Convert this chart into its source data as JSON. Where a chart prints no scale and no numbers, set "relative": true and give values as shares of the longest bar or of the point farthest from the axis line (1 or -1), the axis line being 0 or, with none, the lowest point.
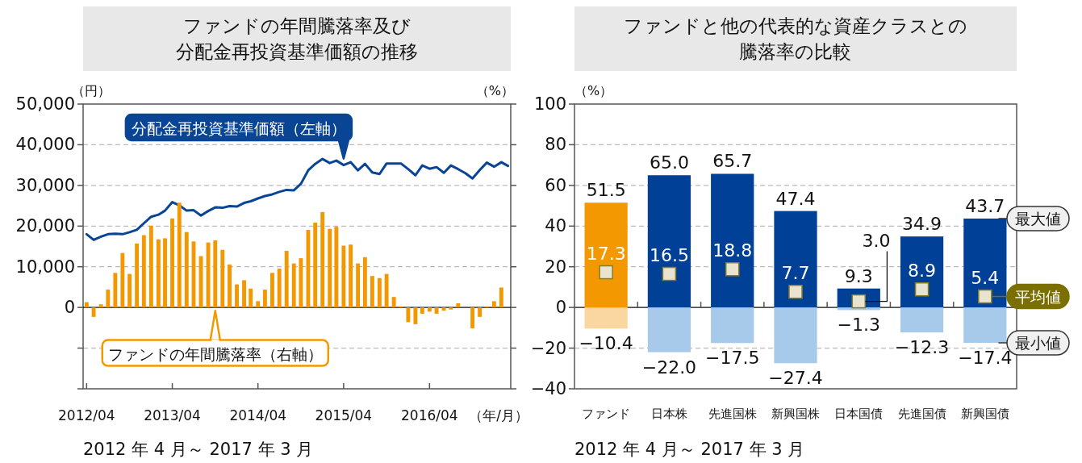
{
  "chart_data": [
    {
      "type": "line",
      "title": "ファンドの年間騰落率及び分配金再投資基準価額の推移",
      "xlabel": "（年/月）",
      "ylabel": "（円）",
      "annotations": [
        "2012 年 4 月～ 2017 年 3 月"
      ],
      "legend": "top",
      "grid": "y",
      "x": [
        "2012-04",
        "2012-05",
        "2012-06",
        "2012-07",
        "2012-08",
        "2012-09",
        "2012-10",
        "2012-11",
        "2012-12",
        "2013-01",
        "2013-02",
        "2013-03",
        "2013-04",
        "2013-05",
        "2013-06",
        "2013-07",
        "2013-08",
        "2013-09",
        "2013-10",
        "2013-11",
        "2013-12",
        "2014-01",
        "2014-02",
        "2014-03",
        "2014-04",
        "2014-05",
        "2014-06",
        "2014-07",
        "2014-08",
        "2014-09",
        "2014-10",
        "2014-11",
        "2014-12",
        "2015-01",
        "2015-02",
        "2015-03",
        "2015-04",
        "2015-05",
        "2015-06",
        "2015-07",
        "2015-08",
        "2015-09",
        "2015-10",
        "2015-11",
        "2015-12",
        "2016-01",
        "2016-02",
        "2016-03",
        "2016-04",
        "2016-05",
        "2016-06",
        "2016-07",
        "2016-08",
        "2016-09",
        "2016-10",
        "2016-11",
        "2016-12",
        "2017-01",
        "2017-02",
        "2017-03"
      ],
      "xlim": [
        "2012-03-17",
        "2017-03-13"
      ],
      "xticks": [
        {
          "value": "2012-04",
          "label": "2012/04"
        },
        {
          "value": "2013-04",
          "label": "2013/04"
        },
        {
          "value": "2014-04",
          "label": "2014/04"
        },
        {
          "value": "2015-04",
          "label": "2015/04"
        },
        {
          "value": "2016-04",
          "label": "2016/04"
        }
      ],
      "ylim": [
        -20000,
        50000
      ],
      "yticks": [
        {
          "value": -20000,
          "label": null
        },
        {
          "value": -10000,
          "label": null
        },
        0,
        {
          "value": 10000,
          "label": "10,000"
        },
        {
          "value": 20000,
          "label": "20,000"
        },
        {
          "value": 30000,
          "label": "30,000"
        },
        {
          "value": 40000,
          "label": "40,000"
        },
        {
          "value": 50000,
          "label": "50,000"
        }
      ],
      "series": [
        {
          "name": "分配金再投資基準価額（左軸）",
          "color": "#0a4595",
          "values": [
            18000,
            16600,
            17400,
            18000,
            18100,
            18000,
            18500,
            19100,
            20700,
            22300,
            22800,
            23800,
            25900,
            25100,
            23800,
            23900,
            22600,
            23700,
            24600,
            24500,
            24900,
            24800,
            25700,
            26100,
            26800,
            27400,
            27800,
            28400,
            28900,
            28800,
            30400,
            33700,
            35300,
            36500,
            35500,
            36100,
            35000,
            35700,
            33700,
            35300,
            33200,
            32800,
            35400,
            35400,
            35400,
            34000,
            32500,
            34900,
            34100,
            34500,
            33100,
            34900,
            34000,
            33000,
            31700,
            33800,
            35600,
            34600,
            35700,
            34800
          ]
        }
      ]
    },
    {
      "type": "bar",
      "ylabel": "（%）",
      "relative": true,
      "legend": "bottom",
      "x": [
        "2012-04",
        "2012-05",
        "2012-06",
        "2012-07",
        "2012-08",
        "2012-09",
        "2012-10",
        "2012-11",
        "2012-12",
        "2013-01",
        "2013-02",
        "2013-03",
        "2013-04",
        "2013-05",
        "2013-06",
        "2013-07",
        "2013-08",
        "2013-09",
        "2013-10",
        "2013-11",
        "2013-12",
        "2014-01",
        "2014-02",
        "2014-03",
        "2014-04",
        "2014-05",
        "2014-06",
        "2014-07",
        "2014-08",
        "2014-09",
        "2014-10",
        "2014-11",
        "2014-12",
        "2015-01",
        "2015-02",
        "2015-03",
        "2015-04",
        "2015-05",
        "2015-06",
        "2015-07",
        "2015-08",
        "2015-09",
        "2015-10",
        "2015-11",
        "2015-12",
        "2016-01",
        "2016-02",
        "2016-03",
        "2016-04",
        "2016-05",
        "2016-06",
        "2016-07",
        "2016-08",
        "2016-09",
        "2016-10",
        "2016-11",
        "2016-12",
        "2017-01",
        "2017-02"
      ],
      "xlim": [
        "2012-03-17",
        "2017-03-13"
      ],
      "series": [
        {
          "name": "ファンドの年間騰落率（右軸）",
          "color": "#f39800",
          "values": [
            0.05,
            -0.09,
            0.03,
            0.17,
            0.33,
            0.52,
            0.32,
            0.61,
            0.69,
            0.78,
            0.65,
            0.66,
            0.85,
            1,
            0.72,
            0.63,
            0.49,
            0.62,
            0.64,
            0.55,
            0.41,
            0.22,
            0.26,
            0.18,
            0.06,
            0.17,
            0.33,
            0.37,
            0.54,
            0.42,
            0.47,
            0.74,
            0.81,
            0.91,
            0.75,
            0.77,
            0.59,
            0.6,
            0.42,
            0.48,
            0.3,
            0.28,
            0.32,
            0.1,
            0.01,
            -0.14,
            -0.16,
            -0.06,
            -0.04,
            -0.06,
            -0.03,
            -0.02,
            0.04,
            0,
            -0.2,
            -0.09,
            0.01,
            0.06,
            0.19
          ]
        }
      ]
    },
    {
      "type": "bar",
      "title": "ファンドと他の代表的な資産クラスとの騰落率の比較",
      "ylabel": "（%）",
      "annotations": [
        "2012 年 4 月～ 2017 年 3 月"
      ],
      "legend": "right",
      "grid": "y",
      "stacked": true,
      "categories": [
        "ファンド",
        "日本株",
        "先進国株",
        "新興国株",
        "日本国債",
        "先進国債",
        "新興国債"
      ],
      "ylim": [
        -40,
        100
      ],
      "yticks": [
        {
          "value": -40,
          "label": "−40"
        },
        {
          "value": -20,
          "label": "−20"
        },
        0,
        20,
        40,
        60,
        80,
        100
      ],
      "series": [
        {
          "name": "最大値",
          "colors": [
            "#f39800",
            "#004097",
            "#004097",
            "#004097",
            "#004097",
            "#004097",
            "#004097"
          ],
          "values": [
            51.5,
            65.0,
            65.7,
            47.4,
            9.3,
            34.9,
            43.7
          ],
          "value_labels": [
            "51.5",
            "65.0",
            "65.7",
            "47.4",
            "9.3",
            "34.9",
            "43.7"
          ]
        },
        {
          "name": "最小値",
          "colors": [
            "#fad7a0",
            "#a7c9ea",
            "#a7c9ea",
            "#a7c9ea",
            "#a7c9ea",
            "#a7c9ea",
            "#a7c9ea"
          ],
          "values": [
            -10.4,
            -22.0,
            -17.5,
            -27.4,
            -1.3,
            -12.3,
            -17.4
          ],
          "value_labels": [
            "−10.4",
            "−22.0",
            "−17.5",
            "−27.4",
            "−1.3",
            "−12.3",
            "−17.4"
          ]
        },
        {
          "name": "平均値",
          "type": "scatter",
          "marker": "square",
          "color": "#e8e4cf",
          "x": [
            "ファンド",
            "日本株",
            "先進国株",
            "新興国株",
            "日本国債",
            "先進国債",
            "新興国債"
          ],
          "values": [
            17.3,
            16.5,
            18.8,
            7.7,
            3.0,
            8.9,
            5.4
          ],
          "value_labels": [
            "17.3",
            "16.5",
            "18.8",
            "7.7",
            "3.0",
            "8.9",
            "5.4"
          ]
        }
      ]
    }
  ]
}
